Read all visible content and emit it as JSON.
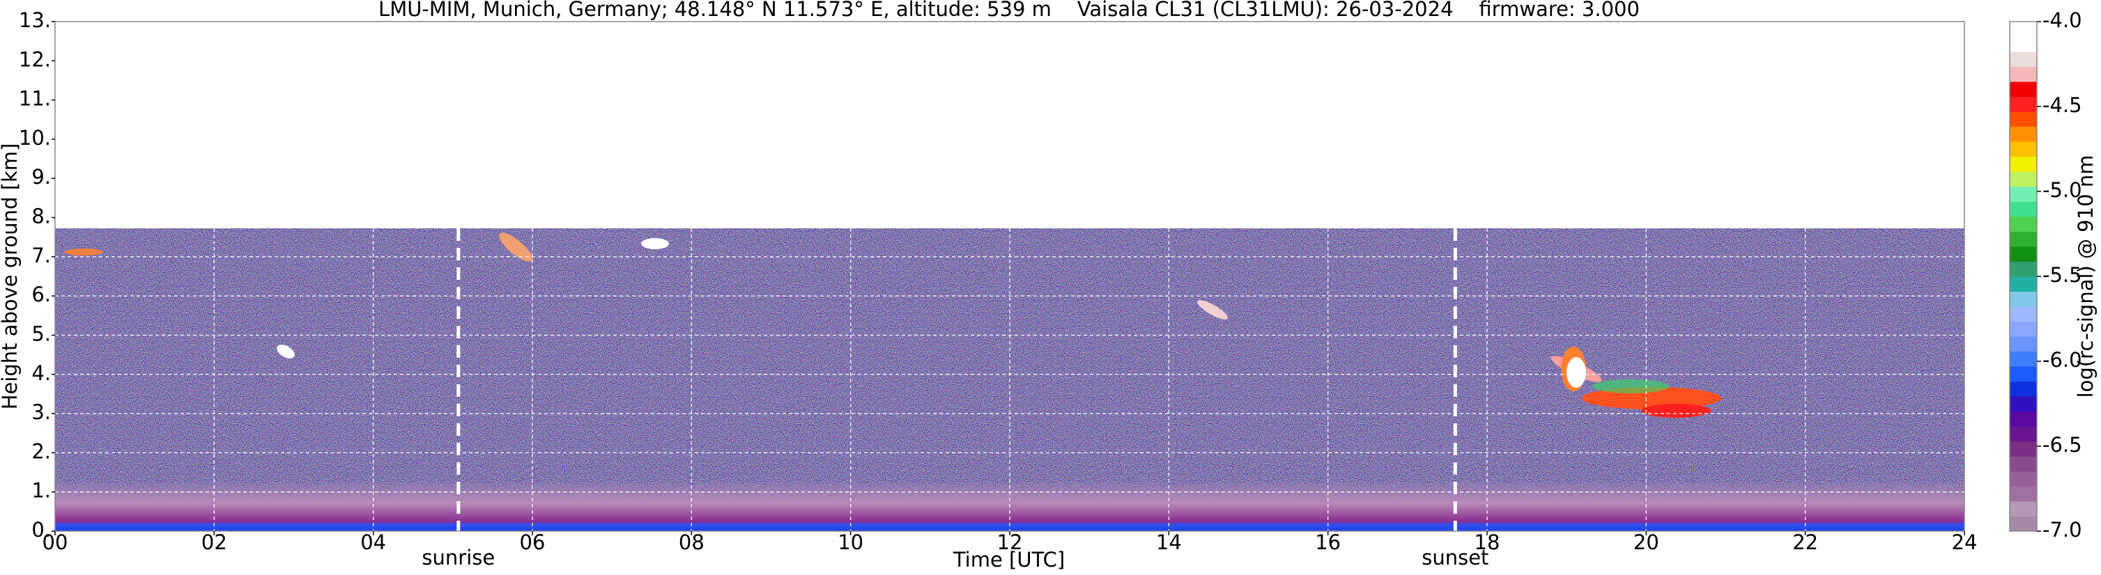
{
  "chart_data": {
    "type": "heatmap",
    "title": "LMU-MIM, Munich, Germany; 48.148° N 11.573° E, altitude: 539 m    Vaisala CL31 (CL31LMU): 26-03-2024    firmware: 3.000",
    "xlabel": "Time [UTC]",
    "ylabel": "Height above ground [km]",
    "xlim": [
      0,
      24
    ],
    "ylim": [
      0,
      13
    ],
    "xticks": [
      {
        "value": 0,
        "label": "00"
      },
      {
        "value": 2,
        "label": "02"
      },
      {
        "value": 4,
        "label": "04"
      },
      {
        "value": 6,
        "label": "06"
      },
      {
        "value": 8,
        "label": "08"
      },
      10,
      12,
      14,
      16,
      18,
      20,
      22,
      24
    ],
    "yticks": [
      {
        "value": 0,
        "label": "0."
      },
      {
        "value": 1,
        "label": "1."
      },
      {
        "value": 2,
        "label": "2."
      },
      {
        "value": 3,
        "label": "3."
      },
      {
        "value": 4,
        "label": "4."
      },
      {
        "value": 5,
        "label": "5."
      },
      {
        "value": 6,
        "label": "6."
      },
      {
        "value": 7,
        "label": "7."
      },
      {
        "value": 8,
        "label": "8."
      },
      {
        "value": 9,
        "label": "9."
      },
      {
        "value": 10,
        "label": "10."
      },
      {
        "value": 11,
        "label": "11."
      },
      {
        "value": 12,
        "label": "12."
      },
      {
        "value": 13,
        "label": "13."
      }
    ],
    "grid": true,
    "annotations": [
      {
        "text": "sunrise",
        "x": 5.07
      },
      {
        "text": "sunset",
        "x": 17.6
      }
    ],
    "colorbar": {
      "label": "log(rc-signal) @ 910 nm",
      "lim": [
        -7,
        -4
      ],
      "ticks": [
        {
          "value": -7,
          "label": "-7.0"
        },
        -6.5,
        {
          "value": -6,
          "label": "-6.0"
        },
        -5.5,
        {
          "value": -5,
          "label": "-5.0"
        },
        -4.5,
        {
          "value": -4,
          "label": "-4.0"
        }
      ],
      "colors": [
        "#a58aa5",
        "#b49ab4",
        "#a070a0",
        "#98609a",
        "#8a4a8e",
        "#7a2e86",
        "#6a1590",
        "#5a0aa0",
        "#3010c0",
        "#1030e0",
        "#1a5cff",
        "#3f7dff",
        "#6a95ff",
        "#8aa8ff",
        "#a0b8ff",
        "#80c8e8",
        "#20b0a0",
        "#30a070",
        "#109010",
        "#30b030",
        "#50d050",
        "#40e090",
        "#70f0b0",
        "#c0f060",
        "#f0f000",
        "#ffc000",
        "#ff9000",
        "#ff5000",
        "#ff2020",
        "#f00000",
        "#f4b8b8",
        "#ecdcdc",
        "#ffffff",
        "#ffffff"
      ]
    }
  }
}
